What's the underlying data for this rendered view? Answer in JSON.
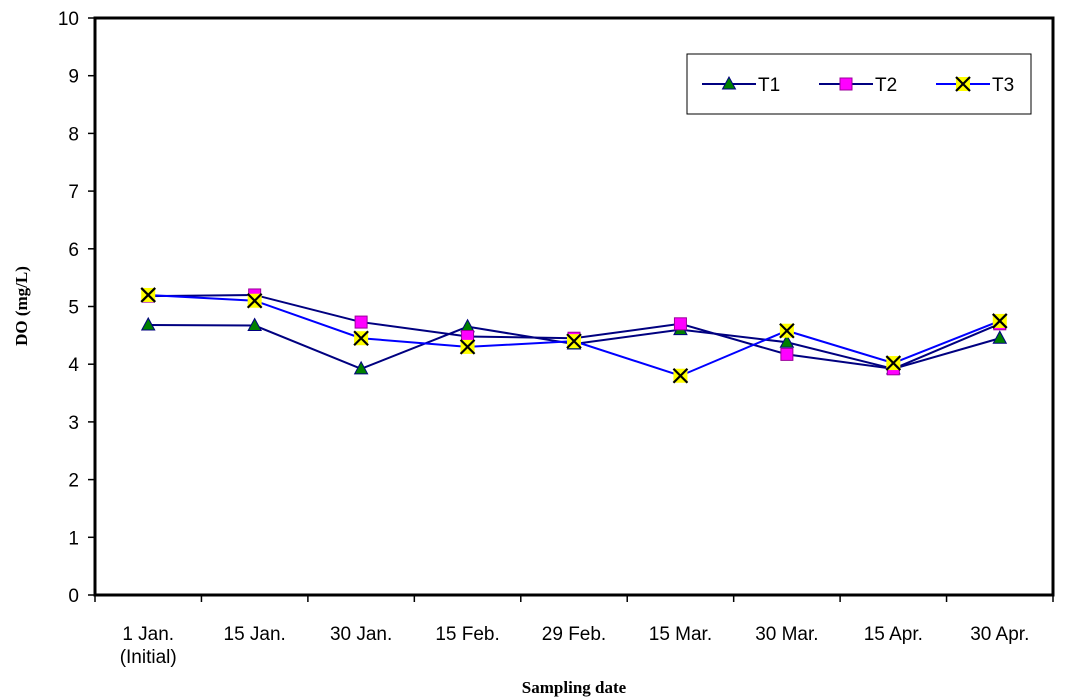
{
  "chart_data": {
    "type": "line",
    "title": "",
    "xlabel": "Sampling date",
    "ylabel": "DO (mg/L)",
    "ylim": [
      0,
      10
    ],
    "yticks": [
      "0",
      "1",
      "2",
      "3",
      "4",
      "5",
      "6",
      "7",
      "8",
      "9",
      "10"
    ],
    "categories": [
      [
        "1 Jan.",
        "(Initial)"
      ],
      [
        "15 Jan."
      ],
      [
        "30 Jan."
      ],
      [
        "15 Feb."
      ],
      [
        "29 Feb."
      ],
      [
        "15 Mar."
      ],
      [
        "30 Mar."
      ],
      [
        "15 Apr."
      ],
      [
        "30 Apr."
      ]
    ],
    "series": [
      {
        "name": "T1",
        "marker": "triangle",
        "line_color": "#000080",
        "marker_color": "#008000",
        "values": [
          4.68,
          4.67,
          3.92,
          4.65,
          4.35,
          4.6,
          4.38,
          3.92,
          4.45
        ]
      },
      {
        "name": "T2",
        "marker": "square",
        "line_color": "#000080",
        "marker_color": "#ff00ff",
        "values": [
          5.18,
          5.2,
          4.73,
          4.48,
          4.45,
          4.7,
          4.17,
          3.92,
          4.7
        ]
      },
      {
        "name": "T3",
        "marker": "x",
        "line_color": "#0000ff",
        "marker_color": "#ffff00",
        "values": [
          5.2,
          5.1,
          4.45,
          4.3,
          4.4,
          3.8,
          4.58,
          4.02,
          4.75
        ]
      }
    ],
    "legend": "top-right",
    "grid": false
  }
}
